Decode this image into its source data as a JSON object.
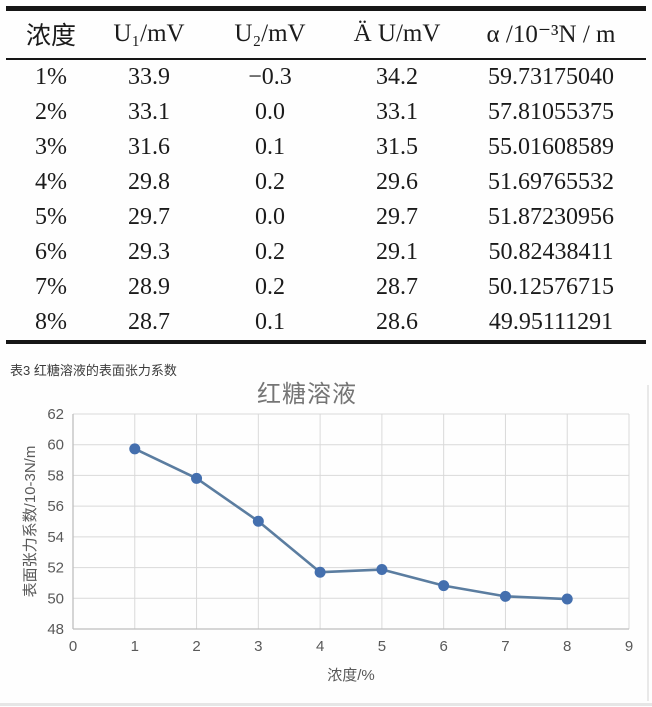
{
  "table": {
    "headers": [
      "浓度",
      "U₁/mV",
      "U₂/mV",
      "Ä U/mV",
      "α /10⁻³N / m"
    ],
    "rows": [
      [
        "1%",
        "33.9",
        "−0.3",
        "34.2",
        "59.73175040"
      ],
      [
        "2%",
        "33.1",
        "0.0",
        "33.1",
        "57.81055375"
      ],
      [
        "3%",
        "31.6",
        "0.1",
        "31.5",
        "55.01608589"
      ],
      [
        "4%",
        "29.8",
        "0.2",
        "29.6",
        "51.69765532"
      ],
      [
        "5%",
        "29.7",
        "0.0",
        "29.7",
        "51.87230956"
      ],
      [
        "6%",
        "29.3",
        "0.2",
        "29.1",
        "50.82438411"
      ],
      [
        "7%",
        "28.9",
        "0.2",
        "28.7",
        "50.12576715"
      ],
      [
        "8%",
        "28.7",
        "0.1",
        "28.6",
        "49.95111291"
      ]
    ],
    "caption": "表3 红糖溶液的表面张力系数"
  },
  "chart_data": {
    "type": "line",
    "title": "红糖溶液",
    "xlabel": "浓度/%",
    "ylabel": "表面张力系数/10-3N/m",
    "x": [
      1,
      2,
      3,
      4,
      5,
      6,
      7,
      8
    ],
    "values": [
      59.7317504,
      57.81055375,
      55.01608589,
      51.69765532,
      51.87230956,
      50.82438411,
      50.12576715,
      49.95111291
    ],
    "xlim": [
      0,
      9
    ],
    "ylim": [
      48,
      62
    ],
    "x_ticks": [
      0,
      1,
      2,
      3,
      4,
      5,
      6,
      7,
      8,
      9
    ],
    "y_ticks": [
      48,
      50,
      52,
      54,
      56,
      58,
      60,
      62
    ],
    "grid": true,
    "legend": false,
    "colors": {
      "marker": "#446fae",
      "line": "#5b7da0",
      "grid": "#d9d9d9",
      "axis": "#bfbfbf",
      "tick_text": "#595959",
      "title_text": "#757575"
    }
  }
}
